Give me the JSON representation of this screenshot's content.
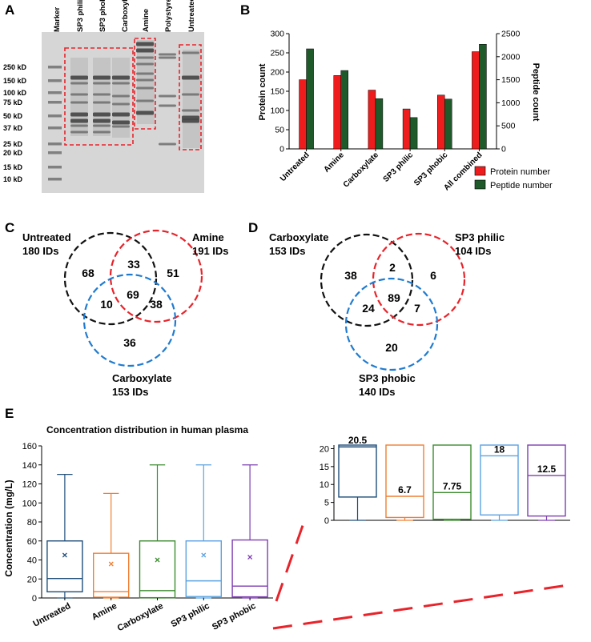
{
  "panel_a": {
    "letter": "A",
    "lanes": [
      "Marker",
      "SP3 philic",
      "SP3 phobic",
      "Carboxylate",
      "Amine",
      "Polystyrene",
      "Untreated"
    ],
    "markers": [
      "250 kD",
      "150 kD",
      "100 kD",
      "75 kD",
      "50 kD",
      "37 kD",
      "25 kD",
      "20 kD",
      "15 kD",
      "10 kD"
    ],
    "box_color": "#e8232a"
  },
  "panel_b": {
    "letter": "B",
    "chart_data": {
      "type": "bar",
      "categories": [
        "Untreated",
        "Amine",
        "Carboxylate",
        "SP3 philic",
        "SP3 phobic",
        "All combined"
      ],
      "series": [
        {
          "name": "Protein number",
          "axis": "left",
          "color": "#ee1c1c",
          "values": [
            180,
            191,
            153,
            104,
            140,
            253
          ]
        },
        {
          "name": "Peptide number",
          "axis": "right",
          "color": "#1f5a2a",
          "values": [
            2170,
            1700,
            1090,
            680,
            1080,
            2270
          ]
        }
      ],
      "ylabel": "Protein count",
      "ylim": [
        0,
        300
      ],
      "yticks": [
        0,
        50,
        100,
        150,
        200,
        250,
        300
      ],
      "y2label": "Peptide count",
      "y2lim": [
        0,
        2500
      ],
      "y2ticks": [
        0,
        500,
        1000,
        1500,
        2000,
        2500
      ],
      "legend": "bottom-right"
    }
  },
  "panel_c": {
    "letter": "C",
    "venn": {
      "set_a": {
        "name": "Untreated",
        "ids": "180 IDs",
        "color": "#111111"
      },
      "set_b": {
        "name": "Amine",
        "ids": "191 IDs",
        "color": "#e8232a"
      },
      "set_c": {
        "name": "Carboxylate",
        "ids": "153 IDs",
        "color": "#1f7bd0"
      },
      "regions": {
        "a_only": "68",
        "ab": "33",
        "b_only": "51",
        "abc": "69",
        "ac": "10",
        "bc": "38",
        "c_only": "36"
      }
    }
  },
  "panel_d": {
    "letter": "D",
    "venn": {
      "set_a": {
        "name": "Carboxylate",
        "ids": "153 IDs",
        "color": "#111111"
      },
      "set_b": {
        "name": "SP3 philic",
        "ids": "104 IDs",
        "color": "#e8232a"
      },
      "set_c": {
        "name": "SP3 phobic",
        "ids": "140 IDs",
        "color": "#1f7bd0"
      },
      "regions": {
        "a_only": "38",
        "ab": "2",
        "b_only": "6",
        "abc": "89",
        "ac": "24",
        "bc": "7",
        "c_only": "20"
      }
    }
  },
  "panel_e": {
    "letter": "E",
    "chart_data": {
      "type": "boxplot",
      "title": "Concentration distribution in human plasma",
      "ylabel": "Concentration (mg/L)",
      "ylim": [
        0,
        160
      ],
      "yticks": [
        0,
        20,
        40,
        60,
        80,
        100,
        120,
        140,
        160
      ],
      "categories": [
        "Untreated",
        "Amine",
        "Carboxylate",
        "SP3 philic",
        "SP3 phobic"
      ],
      "boxes": [
        {
          "name": "Untreated",
          "color": "#1f4e79",
          "min": 0,
          "q1": 6.5,
          "median": 20.5,
          "q3": 60,
          "max": 130,
          "mean": 45
        },
        {
          "name": "Amine",
          "color": "#f07f32",
          "min": 0,
          "q1": 0.8,
          "median": 6.7,
          "q3": 47,
          "max": 110,
          "mean": 36
        },
        {
          "name": "Carboxylate",
          "color": "#3b8b2e",
          "min": 0,
          "q1": 0.3,
          "median": 7.75,
          "q3": 60,
          "max": 140,
          "mean": 40
        },
        {
          "name": "SP3 philic",
          "color": "#5ba2e0",
          "min": 0,
          "q1": 1.5,
          "median": 18,
          "q3": 60,
          "max": 140,
          "mean": 45
        },
        {
          "name": "SP3 phobic",
          "color": "#7e3eb0",
          "min": 0,
          "q1": 1.2,
          "median": 12.5,
          "q3": 61,
          "max": 140,
          "mean": 43
        }
      ],
      "inset": {
        "ylim": [
          0,
          21
        ],
        "yticks": [
          0,
          5,
          10,
          15,
          20
        ],
        "median_labels": [
          "20.5",
          "6.7",
          "7.75",
          "18",
          "12.5"
        ]
      },
      "zoom_color": "#e8232a"
    }
  }
}
